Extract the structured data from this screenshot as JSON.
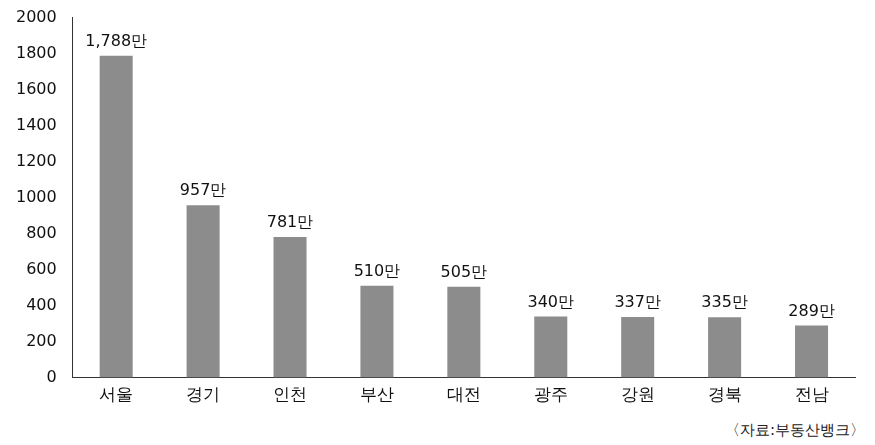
{
  "chart_data": {
    "type": "bar",
    "categories": [
      "서울",
      "경기",
      "인천",
      "부산",
      "대전",
      "광주",
      "강원",
      "경북",
      "전남"
    ],
    "values": [
      1788,
      957,
      781,
      510,
      505,
      340,
      337,
      335,
      289
    ],
    "value_labels": [
      "1,788만",
      "957만",
      "781만",
      "510만",
      "505만",
      "340만",
      "337만",
      "335만",
      "289만"
    ],
    "color": "#8c8c8c",
    "ylim": [
      0,
      2000
    ],
    "yticks": [
      0,
      200,
      400,
      600,
      800,
      1000,
      1200,
      1400,
      1600,
      1800,
      2000
    ],
    "grid": false,
    "data_labels": true,
    "source": "〈자료:부동산뱅크〉"
  }
}
